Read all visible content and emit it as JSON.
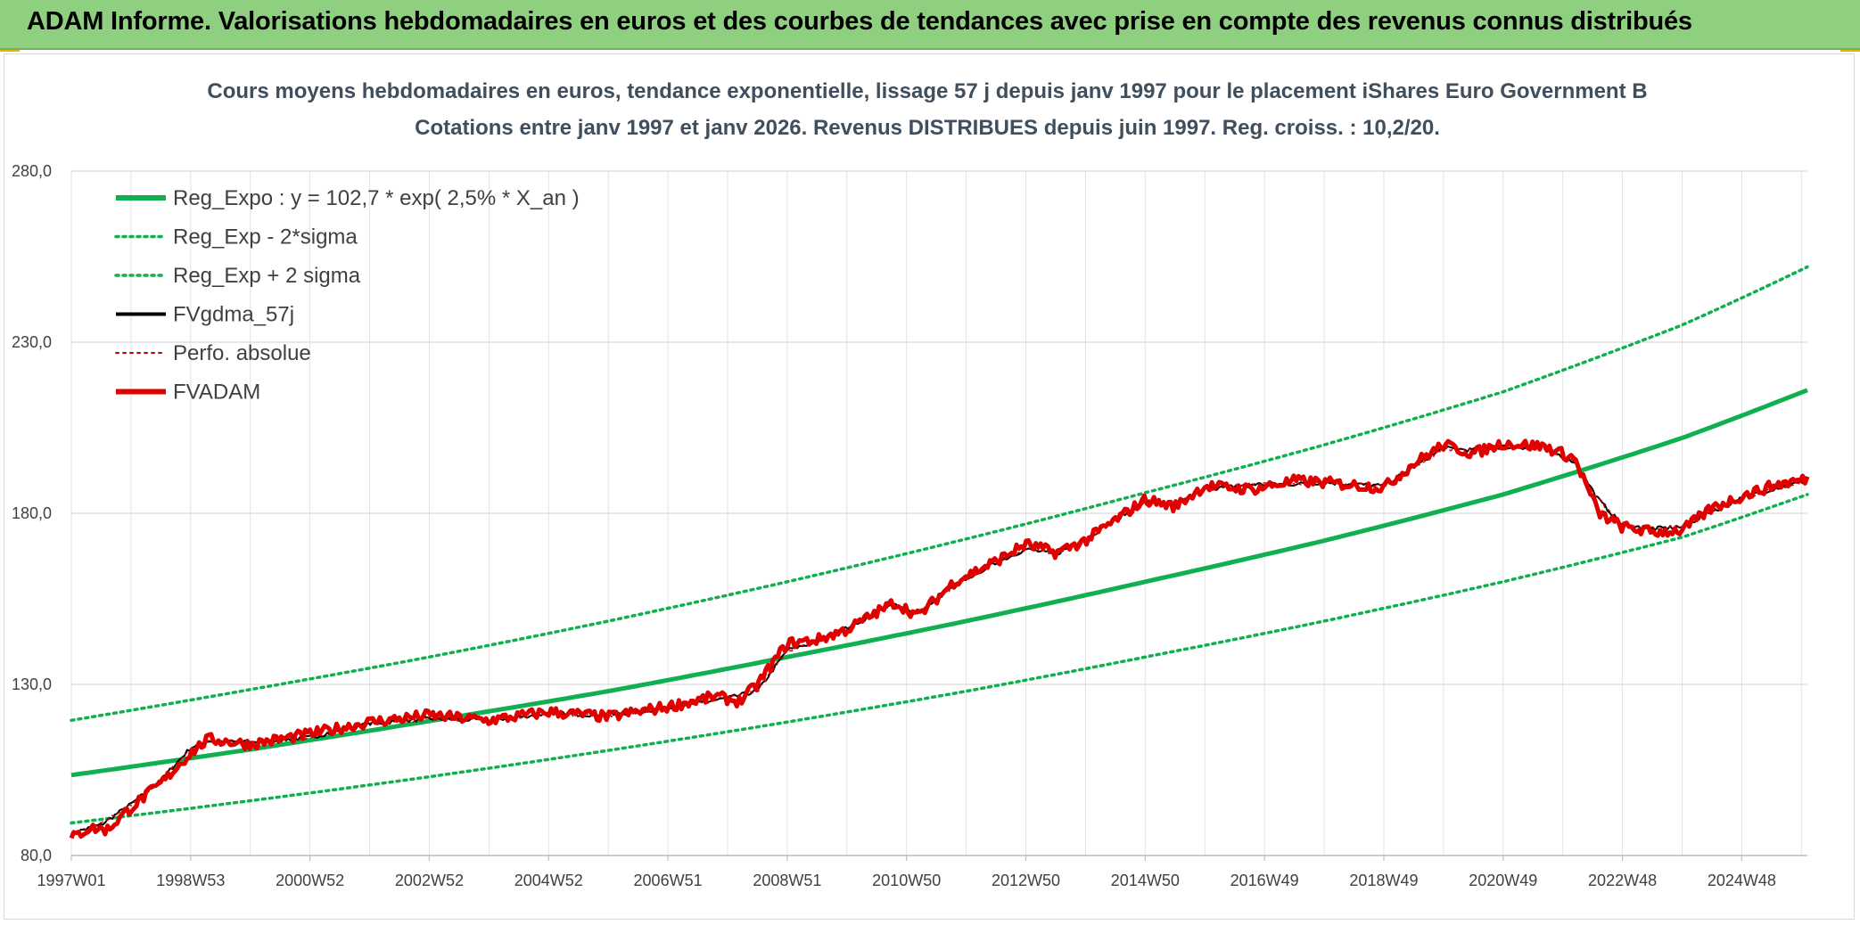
{
  "header": {
    "title": "ADAM Informe. Valorisations hebdomadaires en euros et des courbes de tendances avec prise en compte des revenus connus distribués"
  },
  "chart_data": {
    "type": "line",
    "title": "Cours moyens hebdomadaires en euros, tendance exponentielle, lissage 57 j depuis janv 1997 pour le placement iShares Euro Government B",
    "subtitle": "Cotations entre janv 1997 et janv 2026. Revenus DISTRIBUES depuis juin 1997. Reg. croiss. : 10,2/20.",
    "xlabel": "",
    "ylabel": "",
    "ylim": [
      80,
      280
    ],
    "yticks": [
      "80,0",
      "130,0",
      "180,0",
      "230,0",
      "280,0"
    ],
    "xlim": [
      1997.0,
      2026.1
    ],
    "xticks": [
      {
        "label": "1997W01",
        "x": 1997.0
      },
      {
        "label": "1998W53",
        "x": 1999.0
      },
      {
        "label": "2000W52",
        "x": 2001.0
      },
      {
        "label": "2002W52",
        "x": 2003.0
      },
      {
        "label": "2004W52",
        "x": 2005.0
      },
      {
        "label": "2006W51",
        "x": 2007.0
      },
      {
        "label": "2008W51",
        "x": 2009.0
      },
      {
        "label": "2010W50",
        "x": 2011.0
      },
      {
        "label": "2012W50",
        "x": 2013.0
      },
      {
        "label": "2014W50",
        "x": 2015.0
      },
      {
        "label": "2016W49",
        "x": 2017.0
      },
      {
        "label": "2018W49",
        "x": 2019.0
      },
      {
        "label": "2020W49",
        "x": 2021.0
      },
      {
        "label": "2022W48",
        "x": 2023.0
      },
      {
        "label": "2024W48",
        "x": 2025.0
      }
    ],
    "grid": true,
    "legend_position": "top-left",
    "colors": {
      "green": "#10b050",
      "black": "#000000",
      "red": "#e00000",
      "dark_red": "#c00000"
    },
    "series": [
      {
        "name": "Reg_Expo : y = 102,7 * exp( 2,5% *  X_an )",
        "style": "solid-thick",
        "color": "#10b050",
        "x": [
          1997,
          2000,
          2003,
          2006,
          2009,
          2012,
          2015,
          2018,
          2021,
          2024,
          2026.1
        ],
        "values": [
          103.5,
          111.0,
          119.3,
          128.0,
          138.0,
          148.5,
          160.0,
          172.0,
          185.5,
          202.0,
          216.0
        ]
      },
      {
        "name": "Reg_Exp - 2*sigma",
        "style": "dotted",
        "color": "#10b050",
        "x": [
          1997,
          2000,
          2003,
          2006,
          2009,
          2012,
          2015,
          2018,
          2021,
          2024,
          2026.1
        ],
        "values": [
          89.5,
          96.0,
          103.0,
          110.7,
          119.0,
          128.0,
          138.0,
          148.5,
          160.0,
          173.0,
          185.5
        ]
      },
      {
        "name": "Reg_Exp + 2 sigma",
        "style": "dotted",
        "color": "#10b050",
        "x": [
          1997,
          2000,
          2003,
          2006,
          2009,
          2012,
          2015,
          2018,
          2021,
          2024,
          2026.1
        ],
        "values": [
          119.5,
          128.5,
          138.0,
          148.5,
          160.0,
          172.5,
          186.0,
          200.0,
          215.5,
          235.0,
          252.0
        ]
      },
      {
        "name": "FVgdma_57j",
        "style": "solid",
        "color": "#000000",
        "x": [
          1997.0,
          1997.5,
          1998.0,
          1998.5,
          1999.0,
          1999.3,
          2000.0,
          2001.0,
          2002.0,
          2003.0,
          2004.0,
          2005.0,
          2006.0,
          2007.0,
          2008.0,
          2008.5,
          2009.0,
          2009.5,
          2010.0,
          2010.8,
          2011.2,
          2011.8,
          2012.5,
          2013.0,
          2013.5,
          2014.0,
          2015.0,
          2015.5,
          2016.0,
          2016.8,
          2017.5,
          2018.0,
          2019.0,
          2019.5,
          2020.0,
          2020.5,
          2021.0,
          2021.7,
          2022.2,
          2022.6,
          2023.0,
          2023.5,
          2024.0,
          2024.5,
          2025.0,
          2025.6,
          2026.1
        ],
        "values": [
          86.5,
          89.0,
          95.0,
          102.0,
          111.5,
          113.5,
          113.0,
          114.5,
          118.5,
          120.0,
          119.5,
          121.5,
          121.0,
          123.0,
          126.0,
          128.0,
          140.0,
          142.5,
          146.5,
          153.5,
          150.5,
          159.0,
          165.5,
          169.5,
          168.0,
          172.5,
          183.5,
          182.5,
          187.0,
          188.5,
          188.5,
          189.0,
          188.0,
          193.5,
          199.0,
          198.5,
          199.5,
          199.0,
          195.0,
          184.0,
          176.5,
          175.5,
          176.0,
          180.5,
          184.5,
          187.5,
          189.5
        ]
      },
      {
        "name": "Perfo. absolue",
        "style": "dotted",
        "color": "#c00000",
        "x": [
          1997.0,
          1997.5,
          1998.0,
          1998.5,
          1999.0,
          1999.3,
          2000.0,
          2001.0,
          2002.0,
          2003.0,
          2004.0,
          2005.0,
          2006.0,
          2007.0,
          2008.0,
          2008.5,
          2009.0,
          2009.5,
          2010.0,
          2010.8,
          2011.2,
          2011.8,
          2012.5,
          2013.0,
          2013.5,
          2014.0,
          2015.0,
          2015.5,
          2016.0,
          2016.8,
          2017.5,
          2018.0,
          2019.0,
          2019.5,
          2020.0,
          2020.5,
          2021.0,
          2021.7,
          2022.2,
          2022.6,
          2023.0,
          2023.5,
          2024.0,
          2024.5,
          2025.0,
          2025.6,
          2026.1
        ],
        "values": [
          86.5,
          89.0,
          95.0,
          102.0,
          111.5,
          113.5,
          113.0,
          114.5,
          118.5,
          120.0,
          119.5,
          121.5,
          121.0,
          123.0,
          126.0,
          128.0,
          140.0,
          142.5,
          146.5,
          153.5,
          150.5,
          159.0,
          165.5,
          169.5,
          168.0,
          172.5,
          183.5,
          182.5,
          187.0,
          188.5,
          188.5,
          189.0,
          188.0,
          193.5,
          199.0,
          198.5,
          199.5,
          199.0,
          195.0,
          184.0,
          176.5,
          175.5,
          176.0,
          180.5,
          184.5,
          187.5,
          189.5
        ]
      },
      {
        "name": "FVADAM",
        "style": "solid-thick",
        "color": "#e00000",
        "x": [
          1997.0,
          1997.3,
          1997.6,
          1998.0,
          1998.5,
          1999.0,
          1999.3,
          2000.0,
          2001.0,
          2002.0,
          2003.0,
          2004.0,
          2005.0,
          2006.0,
          2007.0,
          2007.8,
          2008.2,
          2008.5,
          2009.0,
          2009.5,
          2010.0,
          2010.8,
          2011.2,
          2011.8,
          2012.5,
          2013.0,
          2013.5,
          2014.0,
          2015.0,
          2015.5,
          2016.0,
          2016.8,
          2017.5,
          2018.0,
          2019.0,
          2019.5,
          2020.0,
          2020.5,
          2021.0,
          2021.7,
          2022.2,
          2022.6,
          2023.0,
          2023.5,
          2024.0,
          2024.5,
          2025.0,
          2025.6,
          2026.1
        ],
        "values": [
          85.0,
          88.0,
          87.5,
          94.0,
          101.0,
          110.0,
          114.0,
          112.5,
          115.5,
          119.0,
          121.0,
          119.5,
          122.0,
          120.5,
          123.5,
          126.5,
          125.0,
          130.0,
          142.0,
          143.0,
          146.0,
          154.0,
          150.0,
          160.0,
          166.0,
          171.0,
          168.5,
          172.0,
          184.0,
          182.0,
          188.0,
          187.0,
          189.5,
          189.0,
          187.5,
          194.5,
          200.0,
          197.5,
          200.5,
          199.5,
          196.0,
          180.0,
          176.0,
          174.5,
          175.0,
          181.5,
          185.0,
          188.5,
          190.0
        ]
      }
    ]
  }
}
